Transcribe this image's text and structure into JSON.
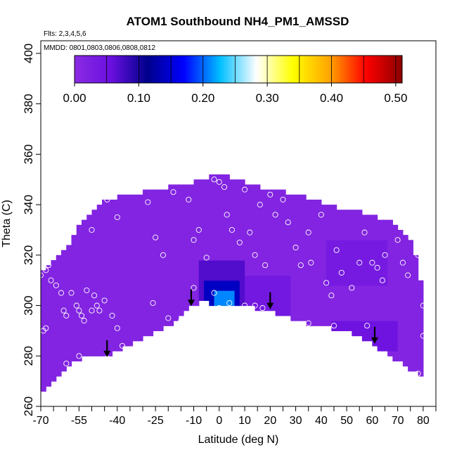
{
  "chart_data": {
    "type": "heatmap",
    "title": "ATOM1 Southbound NH4_PM1_AMSSD",
    "subtitle_flights": "Flts: 2,3,4,5,6",
    "subtitle_dates": "MMDD: 0801,0803,0806,0808,0812",
    "xlabel": "Latitude (deg N)",
    "ylabel": "Theta (C)",
    "xlim": [
      -70,
      85
    ],
    "ylim": [
      260,
      405
    ],
    "x_ticks": [
      -70,
      -55,
      -40,
      -25,
      -10,
      0,
      10,
      20,
      30,
      40,
      50,
      60,
      70,
      80
    ],
    "x_tick_labels": [
      "-70",
      "-55",
      "-40",
      "-25",
      "-10",
      "0",
      "10",
      "20",
      "30",
      "40",
      "50",
      "60",
      "70",
      "80"
    ],
    "y_ticks": [
      260,
      280,
      300,
      320,
      340,
      360,
      380,
      400
    ],
    "y_tick_labels": [
      "260",
      "280",
      "300",
      "320",
      "340",
      "360",
      "380",
      "400"
    ],
    "colorbar": {
      "range": [
        0.0,
        0.51
      ],
      "ticks": [
        0.0,
        0.1,
        0.2,
        0.3,
        0.4,
        0.5
      ],
      "tick_labels": [
        "0.00",
        "0.10",
        "0.20",
        "0.30",
        "0.40",
        "0.50"
      ],
      "colors": [
        "#8a2be2",
        "#6a10e0",
        "#00008b",
        "#0000ff",
        "#00bfff",
        "#ffffff",
        "#ffff00",
        "#ffa500",
        "#ff0000",
        "#8b0000"
      ]
    },
    "upper_boundary": [
      [
        -70,
        314
      ],
      [
        -66,
        316
      ],
      [
        -60,
        323
      ],
      [
        -55,
        331
      ],
      [
        -50,
        338
      ],
      [
        -45,
        341
      ],
      [
        -40,
        343
      ],
      [
        -30,
        345
      ],
      [
        -20,
        347
      ],
      [
        -10,
        349
      ],
      [
        0,
        352
      ],
      [
        10,
        349
      ],
      [
        20,
        346
      ],
      [
        30,
        344
      ],
      [
        40,
        341
      ],
      [
        50,
        338
      ],
      [
        60,
        336
      ],
      [
        70,
        332
      ],
      [
        75,
        326
      ],
      [
        78,
        318
      ],
      [
        80,
        302
      ]
    ],
    "lower_boundary": [
      [
        -70,
        266
      ],
      [
        -66,
        268
      ],
      [
        -60,
        276
      ],
      [
        -52,
        280
      ],
      [
        -44,
        279
      ],
      [
        -40,
        282
      ],
      [
        -30,
        287
      ],
      [
        -20,
        292
      ],
      [
        -10,
        300
      ],
      [
        -5,
        302
      ],
      [
        0,
        299
      ],
      [
        10,
        300
      ],
      [
        20,
        298
      ],
      [
        30,
        294
      ],
      [
        40,
        292
      ],
      [
        50,
        290
      ],
      [
        60,
        285
      ],
      [
        70,
        278
      ],
      [
        80,
        272
      ]
    ],
    "field_background": 0.015,
    "field_features": [
      {
        "lon": [
          -8,
          10
        ],
        "theta": [
          296,
          318
        ],
        "value": 0.07
      },
      {
        "lon": [
          -5,
          7
        ],
        "theta": [
          298,
          310
        ],
        "value": 0.14
      },
      {
        "lon": [
          -1,
          5
        ],
        "theta": [
          299,
          305
        ],
        "value": 0.21
      },
      {
        "lon": [
          10,
          28
        ],
        "theta": [
          294,
          312
        ],
        "value": 0.04
      },
      {
        "lon": [
          42,
          66
        ],
        "theta": [
          308,
          326
        ],
        "value": 0.035
      },
      {
        "lon": [
          45,
          70
        ],
        "theta": [
          283,
          294
        ],
        "value": 0.05
      }
    ],
    "sample_points": [
      [
        -70,
        312
      ],
      [
        -68,
        314
      ],
      [
        -67,
        316
      ],
      [
        -66,
        310
      ],
      [
        -64,
        308
      ],
      [
        -62,
        305
      ],
      [
        -61,
        298
      ],
      [
        -60,
        296
      ],
      [
        -58,
        305
      ],
      [
        -56,
        300
      ],
      [
        -55,
        298
      ],
      [
        -54,
        296
      ],
      [
        -53,
        294
      ],
      [
        -52,
        306
      ],
      [
        -50,
        298
      ],
      [
        -49,
        304
      ],
      [
        -48,
        300
      ],
      [
        -47,
        298
      ],
      [
        -45,
        302
      ],
      [
        -42,
        296
      ],
      [
        -40,
        291
      ],
      [
        -38,
        284
      ],
      [
        -36,
        280
      ],
      [
        -44,
        279
      ],
      [
        -55,
        280
      ],
      [
        -60,
        277
      ],
      [
        -68,
        291
      ],
      [
        -69,
        290
      ],
      [
        -50,
        330
      ],
      [
        -44,
        342
      ],
      [
        -40,
        335
      ],
      [
        -35,
        346
      ],
      [
        -28,
        341
      ],
      [
        -25,
        327
      ],
      [
        -22,
        320
      ],
      [
        -18,
        345
      ],
      [
        -12,
        342
      ],
      [
        -10,
        326
      ],
      [
        -8,
        330
      ],
      [
        -5,
        319
      ],
      [
        0,
        349
      ],
      [
        -2,
        350
      ],
      [
        2,
        347
      ],
      [
        3,
        336
      ],
      [
        5,
        330
      ],
      [
        8,
        325
      ],
      [
        10,
        346
      ],
      [
        12,
        329
      ],
      [
        14,
        320
      ],
      [
        16,
        340
      ],
      [
        18,
        316
      ],
      [
        20,
        344
      ],
      [
        22,
        336
      ],
      [
        25,
        342
      ],
      [
        27,
        333
      ],
      [
        30,
        323
      ],
      [
        32,
        316
      ],
      [
        35,
        329
      ],
      [
        36,
        317
      ],
      [
        40,
        336
      ],
      [
        42,
        309
      ],
      [
        44,
        304
      ],
      [
        46,
        322
      ],
      [
        48,
        313
      ],
      [
        52,
        307
      ],
      [
        55,
        317
      ],
      [
        57,
        329
      ],
      [
        60,
        317
      ],
      [
        62,
        315
      ],
      [
        64,
        310
      ],
      [
        65,
        320
      ],
      [
        70,
        326
      ],
      [
        72,
        317
      ],
      [
        74,
        312
      ],
      [
        76,
        335
      ],
      [
        78,
        320
      ],
      [
        80,
        300
      ],
      [
        -2,
        305
      ],
      [
        0,
        299
      ],
      [
        4,
        301
      ],
      [
        10,
        300
      ],
      [
        14,
        300
      ],
      [
        17,
        299
      ],
      [
        -10,
        307
      ],
      [
        -15,
        294
      ],
      [
        -20,
        295
      ],
      [
        -26,
        301
      ],
      [
        35,
        293
      ],
      [
        45,
        292
      ],
      [
        58,
        292
      ],
      [
        78,
        273
      ],
      [
        80,
        288
      ]
    ],
    "arrows_lat": [
      -44,
      -11,
      20,
      61
    ]
  }
}
